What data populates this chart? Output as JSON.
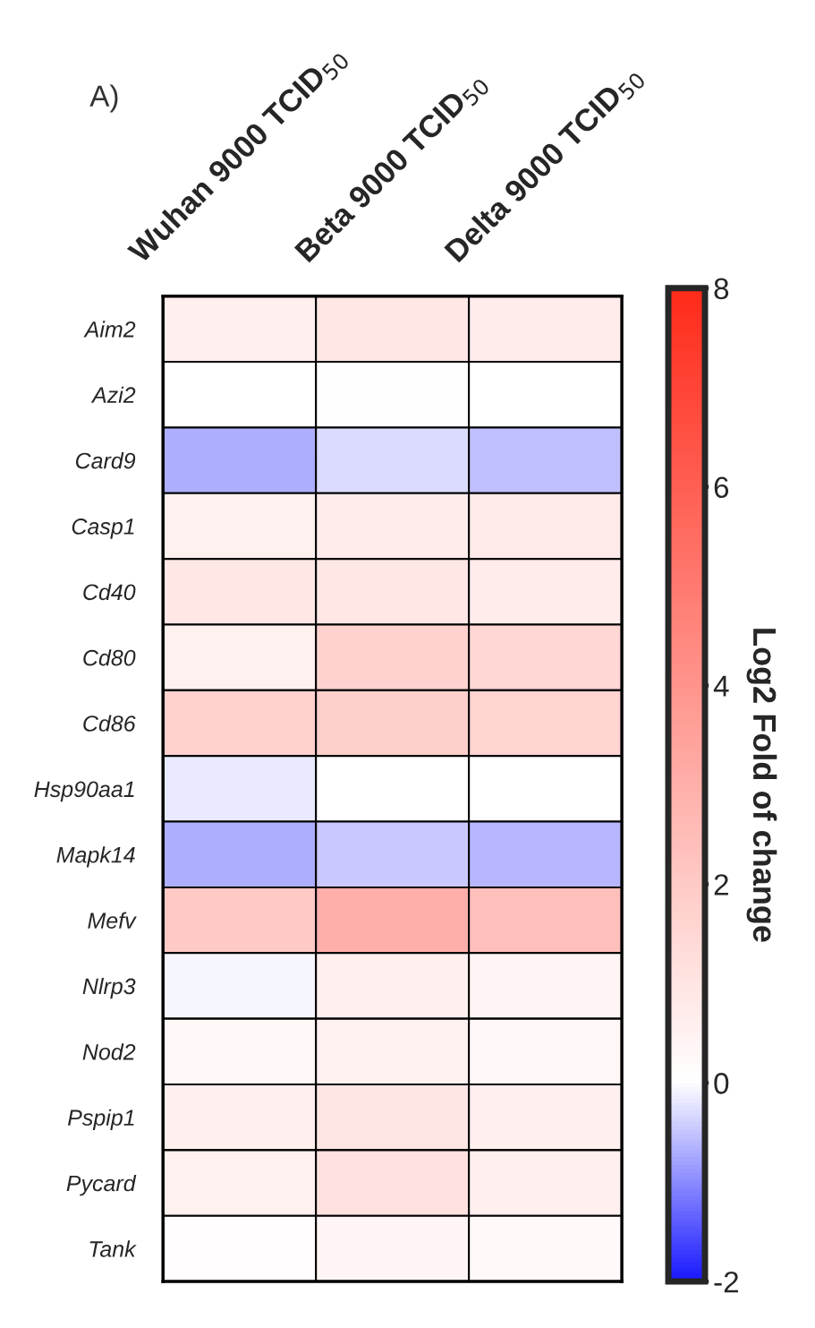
{
  "chart_data": {
    "type": "heatmap",
    "categories": [
      "Wuhan 9000 TCID$_{50}$",
      "Beta 9000 TCID$_{50}$",
      "Delta 9000 TCID$_{50}$"
    ],
    "y_categories": [
      "Aim2",
      "Azi2",
      "Card9",
      "Casp1",
      "Cd40",
      "Cd80",
      "Cd86",
      "Hsp90aa1",
      "Mapk14",
      "Mefv",
      "Nlrp3",
      "Nod2",
      "Pspip1",
      "Pycard",
      "Tank"
    ],
    "cells": [
      [
        0.6,
        0.9,
        0.7
      ],
      [
        0.0,
        0.05,
        0.0
      ],
      [
        -0.7,
        -0.3,
        -0.55
      ],
      [
        0.5,
        0.7,
        0.8
      ],
      [
        0.9,
        0.9,
        0.7
      ],
      [
        0.5,
        1.7,
        1.5
      ],
      [
        1.7,
        1.8,
        1.6
      ],
      [
        -0.2,
        0.02,
        0.0
      ],
      [
        -0.7,
        -0.45,
        -0.6
      ],
      [
        2.0,
        3.0,
        2.4
      ],
      [
        -0.05,
        0.6,
        0.4
      ],
      [
        0.3,
        0.5,
        0.3
      ],
      [
        0.6,
        1.0,
        0.6
      ],
      [
        0.5,
        1.1,
        0.6
      ],
      [
        0.1,
        0.4,
        0.2
      ]
    ],
    "clim": [
      -2,
      8
    ],
    "cticks": [
      -2,
      0,
      2,
      4,
      6,
      8
    ],
    "clabel": "Log2 Fold of change",
    "annotations": [
      "A)"
    ]
  }
}
